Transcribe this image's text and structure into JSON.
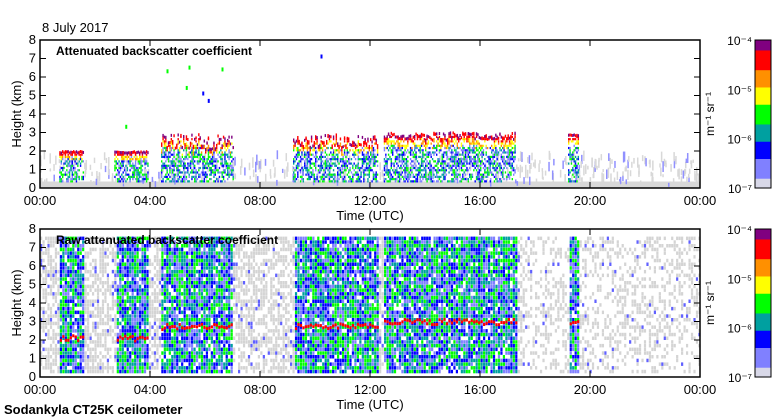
{
  "header": {
    "date": "8 July 2017"
  },
  "footer": {
    "instrument": "Sodankyla CT25K ceilometer"
  },
  "chart_data": [
    {
      "type": "heatmap",
      "title": "Attenuated backscatter coefficient",
      "xlabel": "Time (UTC)",
      "ylabel": "Height (km)",
      "xlim": [
        0,
        24
      ],
      "ylim": [
        0,
        8
      ],
      "xticks": [
        "00:00",
        "04:00",
        "08:00",
        "12:00",
        "16:00",
        "20:00",
        "00:00"
      ],
      "yticks": [
        "0",
        "1",
        "2",
        "3",
        "4",
        "5",
        "6",
        "7",
        "8"
      ],
      "cloud_layers": [
        {
          "start_h": 0.7,
          "end_h": 1.6,
          "base_km": 1.8,
          "top_km": 1.9
        },
        {
          "start_h": 2.7,
          "end_h": 3.9,
          "base_km": 1.8,
          "top_km": 1.9
        },
        {
          "start_h": 4.4,
          "end_h": 7.0,
          "base_km": 2.0,
          "top_km": 2.8
        },
        {
          "start_h": 9.2,
          "end_h": 12.3,
          "base_km": 2.1,
          "top_km": 2.8
        },
        {
          "start_h": 12.5,
          "end_h": 17.3,
          "base_km": 2.5,
          "top_km": 2.9
        },
        {
          "start_h": 19.2,
          "end_h": 19.6,
          "base_km": 2.7,
          "top_km": 2.8
        }
      ],
      "raw": false
    },
    {
      "type": "heatmap",
      "title": "Raw attenuated backscatter coefficient",
      "xlabel": "Time (UTC)",
      "ylabel": "Height (km)",
      "xlim": [
        0,
        24
      ],
      "ylim": [
        0,
        8
      ],
      "xticks": [
        "00:00",
        "04:00",
        "08:00",
        "12:00",
        "16:00",
        "20:00",
        "00:00"
      ],
      "yticks": [
        "0",
        "1",
        "2",
        "3",
        "4",
        "5",
        "6",
        "7",
        "8"
      ],
      "raw": true
    }
  ],
  "colorbar": {
    "unit": "m⁻¹ sr⁻¹",
    "ticks": [
      "10⁻⁴",
      "10⁻⁵",
      "10⁻⁶",
      "10⁻⁷"
    ],
    "range": [
      1e-07,
      0.0001
    ],
    "colors": [
      "#d8d8e8",
      "#8080ff",
      "#0000ff",
      "#00a0a0",
      "#00ff00",
      "#ffff00",
      "#ff9000",
      "#ff0000",
      "#800080"
    ]
  }
}
